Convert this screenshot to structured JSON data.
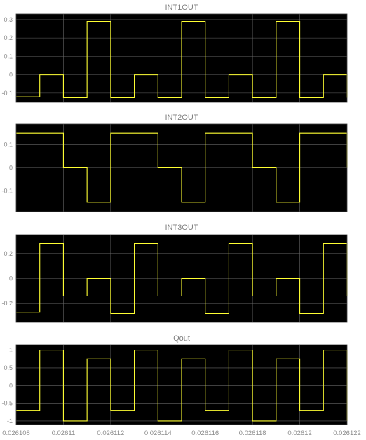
{
  "colors": {
    "background": "#000000",
    "trace": "#ffff33",
    "grid": "#666666",
    "text": "#8c8c8c"
  },
  "chart_data": [
    {
      "type": "line",
      "title": "INT1OUT",
      "xlim": [
        0.026108,
        0.026122
      ],
      "ylim": [
        -0.15,
        0.33
      ],
      "yticks": [
        0.3,
        0.2,
        0.1,
        0,
        -0.1
      ],
      "ytick_labels": [
        "0.3",
        "0.2",
        "0.1",
        "0",
        "-0.1"
      ],
      "x_step_times": [
        0.026108,
        0.026109,
        0.02611,
        0.026111,
        0.026112,
        0.026113,
        0.026114,
        0.026115,
        0.026116,
        0.026117,
        0.026118,
        0.026119,
        0.02612,
        0.026121,
        0.026122
      ],
      "values": [
        -0.12,
        0.0,
        -0.125,
        0.29,
        -0.125,
        0.0,
        -0.125,
        0.29,
        -0.125,
        0.0,
        -0.125,
        0.29,
        -0.125,
        0.0,
        -0.125,
        0.29
      ]
    },
    {
      "type": "line",
      "title": "INT2OUT",
      "xlim": [
        0.026108,
        0.026122
      ],
      "ylim": [
        -0.19,
        0.19
      ],
      "yticks": [
        0.1,
        0,
        -0.1
      ],
      "ytick_labels": [
        "0.1",
        "0",
        "-0.1"
      ],
      "x_step_times": [
        0.026108,
        0.02611,
        0.026111,
        0.026112,
        0.026114,
        0.026115,
        0.026116,
        0.026118,
        0.026119,
        0.02612,
        0.026122
      ],
      "values": [
        0.15,
        0.0,
        -0.15,
        0.15,
        0.0,
        -0.15,
        0.15,
        0.0,
        -0.15,
        0.15,
        0.0,
        -0.15
      ]
    },
    {
      "type": "line",
      "title": "INT3OUT",
      "xlim": [
        0.026108,
        0.026122
      ],
      "ylim": [
        -0.35,
        0.35
      ],
      "yticks": [
        0.2,
        0,
        -0.2
      ],
      "ytick_labels": [
        "0.2",
        "0",
        "-0.2"
      ],
      "x_step_times": [
        0.026108,
        0.026109,
        0.02611,
        0.026111,
        0.026112,
        0.026113,
        0.026114,
        0.026115,
        0.026116,
        0.026117,
        0.026118,
        0.026119,
        0.02612,
        0.026121,
        0.026122
      ],
      "values": [
        -0.27,
        0.28,
        -0.14,
        0.0,
        -0.28,
        0.28,
        -0.14,
        0.0,
        -0.28,
        0.28,
        -0.14,
        0.0,
        -0.28,
        0.28,
        -0.14,
        0.0
      ]
    },
    {
      "type": "line",
      "title": "Qout",
      "xlim": [
        0.026108,
        0.026122
      ],
      "ylim": [
        -1.1,
        1.15
      ],
      "yticks": [
        1,
        0.5,
        0,
        -0.5,
        -1
      ],
      "ytick_labels": [
        "1",
        "0.5",
        "0",
        "-0.5",
        "-1"
      ],
      "x_step_times": [
        0.026108,
        0.026109,
        0.02611,
        0.026111,
        0.026112,
        0.026113,
        0.026114,
        0.026115,
        0.026116,
        0.026117,
        0.026118,
        0.026119,
        0.02612,
        0.026121,
        0.026122
      ],
      "values": [
        -0.7,
        1.0,
        -1.0,
        0.75,
        -0.7,
        1.0,
        -1.0,
        0.75,
        -0.7,
        1.0,
        -1.0,
        0.75,
        -0.7,
        1.0,
        -1.0,
        0.75
      ],
      "xticks": [
        0.026108,
        0.02611,
        0.026112,
        0.026114,
        0.026116,
        0.026118,
        0.02612,
        0.026122
      ],
      "xtick_labels": [
        "0.026108",
        "0.02611",
        "0.026112",
        "0.026114",
        "0.026116",
        "0.026118",
        "0.02612",
        "0.026122"
      ]
    }
  ]
}
